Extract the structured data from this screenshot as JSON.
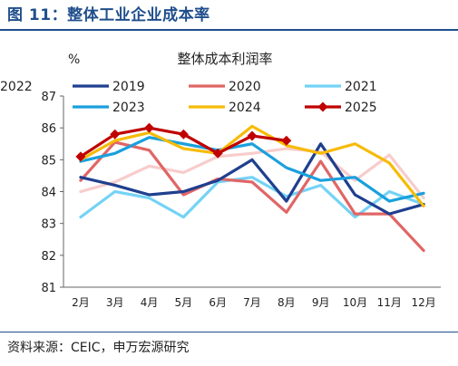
{
  "figure": {
    "title": "图 11：整体工业企业成本率",
    "source": "资料来源：CEIC，申万宏源研究"
  },
  "chart_data": {
    "type": "line",
    "title": "整体成本利润率",
    "ylabel": "%",
    "xlabel": "",
    "ylim": [
      81,
      87
    ],
    "yticks": [
      81,
      82,
      83,
      84,
      85,
      86,
      87
    ],
    "grid": false,
    "legend_position": "top",
    "categories": [
      "2月",
      "3月",
      "4月",
      "5月",
      "6月",
      "7月",
      "8月",
      "9月",
      "10月",
      "11月",
      "12月"
    ],
    "series": [
      {
        "name": "2019",
        "color": "#1f3f8f",
        "marker": "none",
        "values": [
          84.45,
          84.2,
          83.9,
          84.0,
          84.35,
          85.0,
          83.7,
          85.5,
          83.9,
          83.3,
          83.6
        ]
      },
      {
        "name": "2020",
        "color": "#e06666",
        "marker": "none",
        "values": [
          84.35,
          85.55,
          85.3,
          83.9,
          84.4,
          84.3,
          83.35,
          84.95,
          83.3,
          83.3,
          82.15
        ]
      },
      {
        "name": "2021",
        "color": "#74d3f5",
        "marker": "none",
        "values": [
          83.2,
          84.0,
          83.8,
          83.2,
          84.3,
          84.45,
          83.85,
          84.2,
          83.2,
          84.0,
          83.6
        ]
      },
      {
        "name": "2022",
        "color": "#f8cccc",
        "marker": "none",
        "values": [
          84.0,
          84.3,
          84.8,
          84.6,
          85.1,
          85.2,
          85.35,
          85.25,
          84.35,
          85.15,
          83.8
        ]
      },
      {
        "name": "2023",
        "color": "#1aa0dd",
        "marker": "none",
        "values": [
          84.95,
          85.2,
          85.7,
          85.5,
          85.3,
          85.5,
          84.75,
          84.35,
          84.45,
          83.7,
          83.95
        ]
      },
      {
        "name": "2024",
        "color": "#f7bb07",
        "marker": "none",
        "values": [
          85.0,
          85.6,
          85.85,
          85.35,
          85.2,
          86.05,
          85.45,
          85.2,
          85.5,
          84.9,
          83.55
        ]
      },
      {
        "name": "2025",
        "color": "#c00000",
        "marker": "diamond",
        "values": [
          85.1,
          85.8,
          86.0,
          85.8,
          85.2,
          85.75,
          85.6,
          null,
          null,
          null,
          null
        ]
      }
    ]
  }
}
